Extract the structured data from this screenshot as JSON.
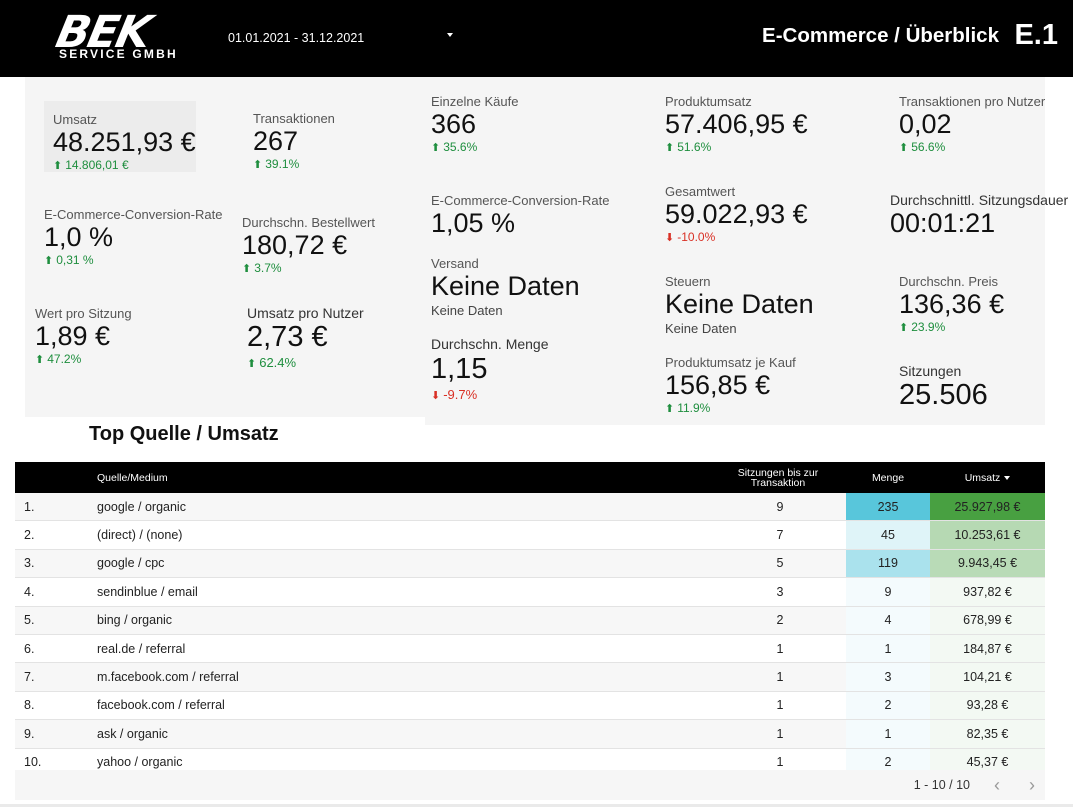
{
  "header": {
    "logo_main": "BEK",
    "logo_sub": "SERVICE GMBH",
    "date_range": "01.01.2021 - 31.12.2021",
    "title": "E-Commerce / Überblick",
    "code": "E.1"
  },
  "kpis": {
    "umsatz": {
      "label": "Umsatz",
      "value": "48.251,93 €",
      "delta": "14.806,01 €"
    },
    "transaktionen": {
      "label": "Transaktionen",
      "value": "267",
      "delta": "39.1%"
    },
    "ecom_conv_left": {
      "label": "E-Commerce-Conversion-Rate",
      "value": "1,0 %",
      "delta": "0,31 %"
    },
    "bestellwert": {
      "label": "Durchschn. Bestellwert",
      "value": "180,72 €",
      "delta": "3.7%"
    },
    "wert_sitzung": {
      "label": "Wert pro Sitzung",
      "value": "1,89 €",
      "delta": "47.2%"
    },
    "umsatz_nutzer": {
      "label": "Umsatz pro Nutzer",
      "value": "2,73 €",
      "delta": "62.4%"
    },
    "einzelne_kaeufe": {
      "label": "Einzelne Käufe",
      "value": "366",
      "delta": "35.6%"
    },
    "ecom_conv_mid": {
      "label": "E-Commerce-Conversion-Rate",
      "value": "1,05 %"
    },
    "versand": {
      "label": "Versand",
      "value": "Keine Daten",
      "sub": "Keine Daten"
    },
    "menge": {
      "label": "Durchschn. Menge",
      "value": "1,15",
      "delta": "-9.7%"
    },
    "produktumsatz": {
      "label": "Produktumsatz",
      "value": "57.406,95 €",
      "delta": "51.6%"
    },
    "gesamtwert": {
      "label": "Gesamtwert",
      "value": "59.022,93 €",
      "delta": "-10.0%"
    },
    "steuern": {
      "label": "Steuern",
      "value": "Keine Daten",
      "sub": "Keine Daten"
    },
    "produktumsatz_kauf": {
      "label": "Produktumsatz je Kauf",
      "value": "156,85 €",
      "delta": "11.9%"
    },
    "trans_nutzer": {
      "label": "Transaktionen pro Nutzer",
      "value": "0,02",
      "delta": "56.6%"
    },
    "sitzungsdauer": {
      "label": "Durchschnittl. Sitzungsdauer",
      "value": "00:01:21"
    },
    "preis": {
      "label": "Durchschn. Preis",
      "value": "136,36 €",
      "delta": "23.9%"
    },
    "sitzungen": {
      "label": "Sitzungen",
      "value": "25.506"
    }
  },
  "colors": {
    "up": "#1e8e3e",
    "down": "#d93025",
    "qty_max": "#4fc3d9",
    "rev_max": "#3e9b37"
  },
  "table": {
    "title": "Top Quelle / Umsatz",
    "headers": {
      "source": "Quelle/Medium",
      "sessions": "Sitzungen bis zur Transaktion",
      "qty": "Menge",
      "revenue": "Umsatz"
    },
    "rows": [
      {
        "rank": "1.",
        "source": "google / organic",
        "sessions": "9",
        "qty": "235",
        "revenue": "25.927,98 €",
        "qty_level": 1.0,
        "rev_level": 1.0
      },
      {
        "rank": "2.",
        "source": "(direct) / (none)",
        "sessions": "7",
        "qty": "45",
        "revenue": "10.253,61 €",
        "qty_level": 0.19,
        "rev_level": 0.4
      },
      {
        "rank": "3.",
        "source": "google / cpc",
        "sessions": "5",
        "qty": "119",
        "revenue": "9.943,45 €",
        "qty_level": 0.51,
        "rev_level": 0.38
      },
      {
        "rank": "4.",
        "source": "sendinblue / email",
        "sessions": "3",
        "qty": "9",
        "revenue": "937,82 €",
        "qty_level": 0.04,
        "rev_level": 0.04
      },
      {
        "rank": "5.",
        "source": "bing / organic",
        "sessions": "2",
        "qty": "4",
        "revenue": "678,99 €",
        "qty_level": 0.02,
        "rev_level": 0.03
      },
      {
        "rank": "6.",
        "source": "real.de / referral",
        "sessions": "1",
        "qty": "1",
        "revenue": "184,87 €",
        "qty_level": 0.0,
        "rev_level": 0.01
      },
      {
        "rank": "7.",
        "source": "m.facebook.com / referral",
        "sessions": "1",
        "qty": "3",
        "revenue": "104,21 €",
        "qty_level": 0.01,
        "rev_level": 0.0
      },
      {
        "rank": "8.",
        "source": "facebook.com / referral",
        "sessions": "1",
        "qty": "2",
        "revenue": "93,28 €",
        "qty_level": 0.01,
        "rev_level": 0.0
      },
      {
        "rank": "9.",
        "source": "ask / organic",
        "sessions": "1",
        "qty": "1",
        "revenue": "82,35 €",
        "qty_level": 0.0,
        "rev_level": 0.0
      },
      {
        "rank": "10.",
        "source": "yahoo / organic",
        "sessions": "1",
        "qty": "2",
        "revenue": "45,37 €",
        "qty_level": 0.01,
        "rev_level": 0.0
      }
    ],
    "pagination": "1 - 10 / 10"
  }
}
